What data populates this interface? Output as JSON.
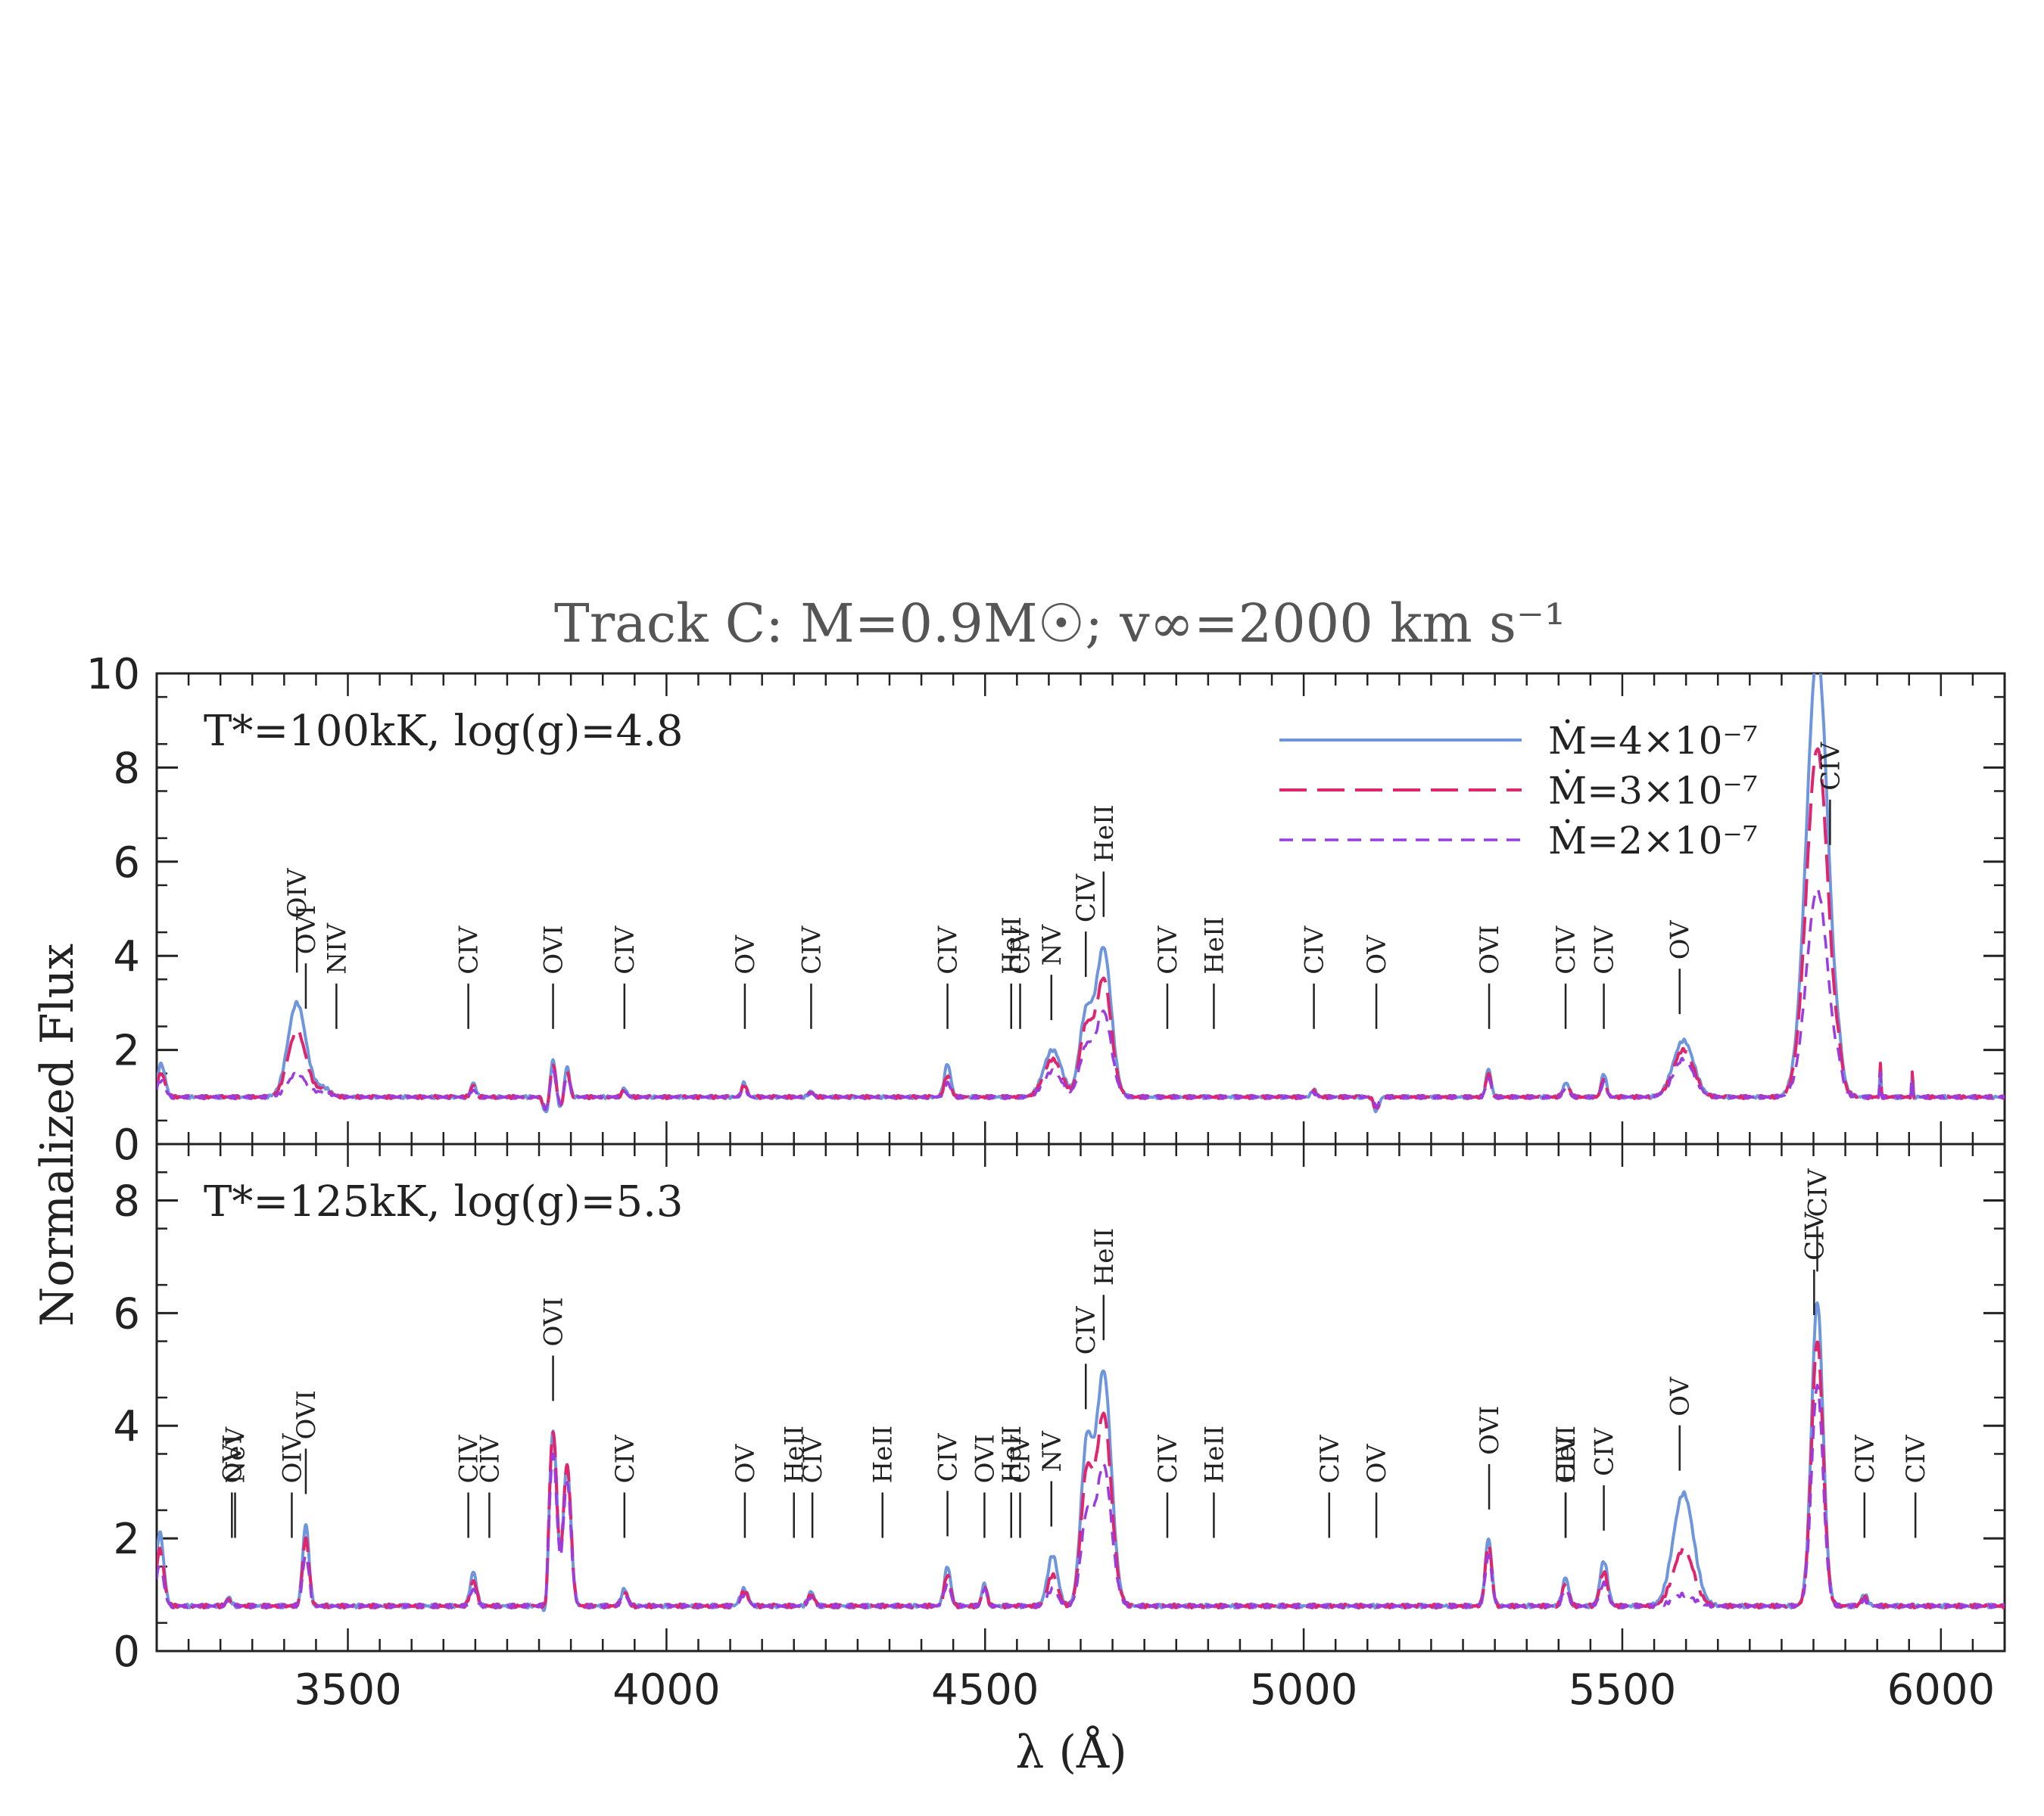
{
  "colors": {
    "series_high": "#6f96dc",
    "series_mid": "#e0246e",
    "series_low": "#9a3ce0",
    "axis": "#222222",
    "title": "#555555"
  },
  "chart_data": {
    "type": "line",
    "title": "Track C: M=0.9M☉; v∞=2000 km s⁻¹",
    "xlabel": "λ (Å)",
    "ylabel": "Normalized Flux",
    "xlim": [
      3200,
      6100
    ],
    "x_ticks": [
      3500,
      4000,
      4500,
      5000,
      5500,
      6000
    ],
    "legend": {
      "placement": "top-right of upper panel",
      "entries": [
        {
          "label": "Ṁ=4×10⁻⁷",
          "series": "high",
          "style": "solid"
        },
        {
          "label": "Ṁ=3×10⁻⁷",
          "series": "mid",
          "style": "long-dash"
        },
        {
          "label": "Ṁ=2×10⁻⁷",
          "series": "low",
          "style": "short-dash"
        }
      ]
    },
    "panels": [
      {
        "id": "top",
        "label": "T*=100kK, log(g)=4.8",
        "ylim": [
          0,
          10
        ],
        "y_ticks": [
          0,
          2,
          4,
          6,
          8,
          10
        ],
        "continuum": 1.0,
        "features": [
          {
            "x": 3207,
            "w": 6,
            "h": [
              0.7,
              0.5,
              0.35
            ]
          },
          {
            "x": 3420,
            "w": 14,
            "h": [
              2.0,
              1.4,
              0.5
            ]
          },
          {
            "x": 3460,
            "w": 12,
            "h": [
              0.2,
              0.15,
              0.1
            ]
          },
          {
            "x": 3697,
            "w": 4,
            "h": [
              0.3,
              0.25,
              0.15
            ]
          },
          {
            "x": 3811,
            "w": 4,
            "h": [
              -0.35,
              -0.3,
              -0.25
            ]
          },
          {
            "x": 3822,
            "w": 4,
            "h": [
              0.8,
              0.7,
              0.55
            ]
          },
          {
            "x": 3834,
            "w": 4,
            "h": [
              -0.25,
              -0.2,
              -0.15
            ]
          },
          {
            "x": 3844,
            "w": 4,
            "h": [
              0.65,
              0.55,
              0.45
            ]
          },
          {
            "x": 3934,
            "w": 4,
            "h": [
              0.18,
              0.15,
              0.1
            ]
          },
          {
            "x": 4122,
            "w": 4,
            "h": [
              0.3,
              0.25,
              0.18
            ]
          },
          {
            "x": 4227,
            "w": 4,
            "h": [
              0.12,
              0.1,
              0.08
            ]
          },
          {
            "x": 4441,
            "w": 5,
            "h": [
              0.7,
              0.45,
              0.3
            ]
          },
          {
            "x": 4606,
            "w": 14,
            "h": [
              1.0,
              0.8,
              0.55
            ]
          },
          {
            "x": 4658,
            "w": 10,
            "h": [
              1.7,
              1.4,
              1.0
            ]
          },
          {
            "x": 4686,
            "w": 12,
            "h": [
              3.15,
              2.5,
              1.8
            ]
          },
          {
            "x": 5016,
            "w": 4,
            "h": [
              0.15,
              0.12,
              0.08
            ]
          },
          {
            "x": 5114,
            "w": 4,
            "h": [
              -0.3,
              -0.25,
              -0.2
            ]
          },
          {
            "x": 5290,
            "w": 4,
            "h": [
              0.6,
              0.5,
              0.4
            ]
          },
          {
            "x": 5412,
            "w": 5,
            "h": [
              0.3,
              0.25,
              0.2
            ]
          },
          {
            "x": 5471,
            "w": 4,
            "h": [
              0.5,
              0.4,
              0.3
            ]
          },
          {
            "x": 5596,
            "w": 16,
            "h": [
              1.2,
              1.0,
              0.8
            ]
          },
          {
            "x": 5806,
            "w": 17,
            "h": [
              9.4,
              7.4,
              4.4
            ]
          },
          {
            "x": 5840,
            "w": 5,
            "h": [
              0.3,
              0.3,
              0.3
            ]
          },
          {
            "x": 5905,
            "w": 1,
            "h": [
              0.7,
              0.7,
              0.5
            ]
          },
          {
            "x": 5955,
            "w": 1,
            "h": [
              0.5,
              0.5,
              0.4
            ]
          }
        ],
        "line_labels": [
          {
            "x": 3420,
            "text": "OIV"
          },
          {
            "x": 3434,
            "text": "OVI"
          },
          {
            "x": 3482,
            "text": "NIV"
          },
          {
            "x": 3689,
            "text": "CIV"
          },
          {
            "x": 3822,
            "text": "OVI"
          },
          {
            "x": 3934,
            "text": "CIV"
          },
          {
            "x": 4123,
            "text": "OV"
          },
          {
            "x": 4227,
            "text": "CIV"
          },
          {
            "x": 4441,
            "text": "CIV"
          },
          {
            "x": 4541,
            "text": "HeII"
          },
          {
            "x": 4555,
            "text": "CIV"
          },
          {
            "x": 4604,
            "text": "NV"
          },
          {
            "x": 4658,
            "text": "CIV"
          },
          {
            "x": 4686,
            "text": "HeII"
          },
          {
            "x": 4786,
            "text": "CIV"
          },
          {
            "x": 4859,
            "text": "HeII"
          },
          {
            "x": 5016,
            "text": "CIV"
          },
          {
            "x": 5114,
            "text": "OV"
          },
          {
            "x": 5291,
            "text": "OVI"
          },
          {
            "x": 5411,
            "text": "CIV"
          },
          {
            "x": 5471,
            "text": "CIV"
          },
          {
            "x": 5590,
            "text": "OV"
          },
          {
            "x": 5826,
            "text": "CIV"
          }
        ]
      },
      {
        "id": "bottom",
        "label": "T*=125kK, log(g)=5.3",
        "ylim": [
          0,
          9
        ],
        "y_ticks": [
          0,
          2,
          4,
          6,
          8
        ],
        "continuum": 0.8,
        "features": [
          {
            "x": 3205,
            "w": 6,
            "h": [
              1.3,
              1.0,
              0.7
            ]
          },
          {
            "x": 3313,
            "w": 4,
            "h": [
              0.15,
              0.12,
              0.1
            ]
          },
          {
            "x": 3434,
            "w": 5,
            "h": [
              1.45,
              1.2,
              0.9
            ]
          },
          {
            "x": 3697,
            "w": 5,
            "h": [
              0.6,
              0.45,
              0.3
            ]
          },
          {
            "x": 3811,
            "w": 3,
            "h": [
              -0.45,
              -0.35,
              -0.25
            ]
          },
          {
            "x": 3822,
            "w": 6,
            "h": [
              3.1,
              3.1,
              2.7
            ]
          },
          {
            "x": 3844,
            "w": 6,
            "h": [
              2.5,
              2.5,
              2.2
            ]
          },
          {
            "x": 3934,
            "w": 5,
            "h": [
              0.3,
              0.25,
              0.2
            ]
          },
          {
            "x": 4122,
            "w": 6,
            "h": [
              0.3,
              0.25,
              0.2
            ]
          },
          {
            "x": 4227,
            "w": 5,
            "h": [
              0.25,
              0.2,
              0.15
            ]
          },
          {
            "x": 4441,
            "w": 5,
            "h": [
              0.7,
              0.55,
              0.4
            ]
          },
          {
            "x": 4499,
            "w": 4,
            "h": [
              0.4,
              0.35,
              0.3
            ]
          },
          {
            "x": 4606,
            "w": 8,
            "h": [
              0.9,
              0.55,
              0.3
            ]
          },
          {
            "x": 4659,
            "w": 9,
            "h": [
              2.7,
              2.2,
              1.5
            ]
          },
          {
            "x": 4686,
            "w": 12,
            "h": [
              4.15,
              3.4,
              2.5
            ]
          },
          {
            "x": 5290,
            "w": 5,
            "h": [
              1.2,
              1.1,
              0.9
            ]
          },
          {
            "x": 5411,
            "w": 5,
            "h": [
              0.5,
              0.4,
              0.3
            ]
          },
          {
            "x": 5471,
            "w": 6,
            "h": [
              0.8,
              0.6,
              0.4
            ]
          },
          {
            "x": 5596,
            "w": 16,
            "h": [
              2.0,
              1.0,
              0.2
            ]
          },
          {
            "x": 5806,
            "w": 9,
            "h": [
              5.4,
              4.7,
              3.9
            ]
          },
          {
            "x": 5880,
            "w": 5,
            "h": [
              0.2,
              0.15,
              0.1
            ]
          }
        ],
        "line_labels": [
          {
            "x": 3318,
            "text": "OVI"
          },
          {
            "x": 3323,
            "text": "NeV"
          },
          {
            "x": 3412,
            "text": "OIV"
          },
          {
            "x": 3434,
            "text": "OVI"
          },
          {
            "x": 3689,
            "text": "CIV"
          },
          {
            "x": 3722,
            "text": "CIV"
          },
          {
            "x": 3822,
            "text": "OVI"
          },
          {
            "x": 3934,
            "text": "CIV"
          },
          {
            "x": 4123,
            "text": "OV"
          },
          {
            "x": 4200,
            "text": "HeII"
          },
          {
            "x": 4229,
            "text": "CIV"
          },
          {
            "x": 4339,
            "text": "HeII"
          },
          {
            "x": 4441,
            "text": "CIV"
          },
          {
            "x": 4499,
            "text": "OVI"
          },
          {
            "x": 4541,
            "text": "HeII"
          },
          {
            "x": 4555,
            "text": "CIV"
          },
          {
            "x": 4604,
            "text": "NV"
          },
          {
            "x": 4658,
            "text": "CIV"
          },
          {
            "x": 4686,
            "text": "HeII"
          },
          {
            "x": 4786,
            "text": "CIV"
          },
          {
            "x": 4859,
            "text": "HeII"
          },
          {
            "x": 5040,
            "text": "CIV"
          },
          {
            "x": 5114,
            "text": "OV"
          },
          {
            "x": 5291,
            "text": "OVI"
          },
          {
            "x": 5411,
            "text": "HeII"
          },
          {
            "x": 5411,
            "text": "CIV"
          },
          {
            "x": 5471,
            "text": "CIV"
          },
          {
            "x": 5590,
            "text": "OV"
          },
          {
            "x": 5801,
            "text": "CIV"
          },
          {
            "x": 5806,
            "text": "CIV"
          },
          {
            "x": 5880,
            "text": "CIV"
          },
          {
            "x": 5960,
            "text": "CIV"
          }
        ]
      }
    ]
  }
}
